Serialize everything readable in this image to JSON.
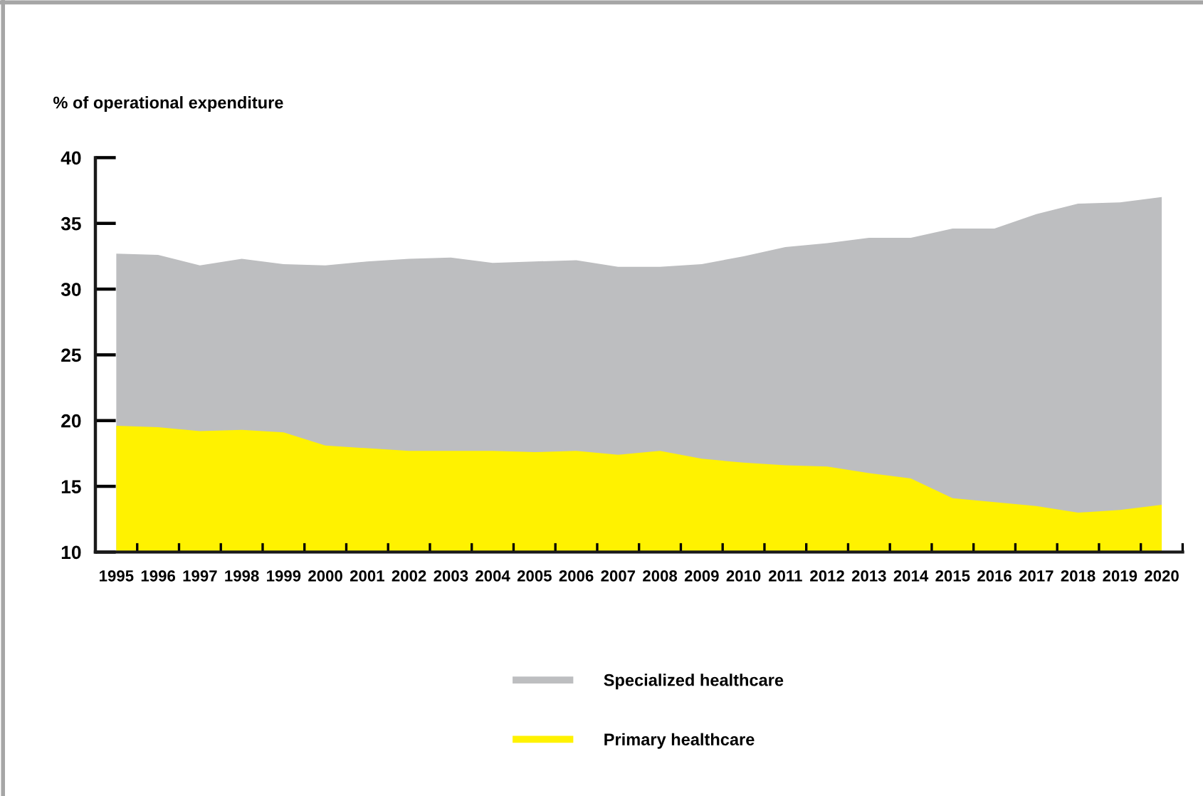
{
  "chart_data": {
    "type": "area",
    "ylabel": "% of operational expenditure",
    "categories": [
      "1995",
      "1996",
      "1997",
      "1998",
      "1999",
      "2000",
      "2001",
      "2002",
      "2003",
      "2004",
      "2005",
      "2006",
      "2007",
      "2008",
      "2009",
      "2010",
      "2011",
      "2012",
      "2013",
      "2014",
      "2015",
      "2016",
      "2017",
      "2018",
      "2019",
      "2020"
    ],
    "series": [
      {
        "name": "Specialized healthcare",
        "color": "#bdbec0",
        "values": [
          32.7,
          32.6,
          31.8,
          32.3,
          31.9,
          31.8,
          32.1,
          32.3,
          32.4,
          32.0,
          32.1,
          32.2,
          31.7,
          31.7,
          31.9,
          32.5,
          33.2,
          33.5,
          33.9,
          33.9,
          34.6,
          34.6,
          35.7,
          36.5,
          36.6,
          37.0
        ]
      },
      {
        "name": "Primary healthcare",
        "color": "#fff200",
        "values": [
          19.6,
          19.5,
          19.2,
          19.3,
          19.1,
          18.1,
          17.9,
          17.7,
          17.7,
          17.7,
          17.6,
          17.7,
          17.4,
          17.7,
          17.1,
          16.8,
          16.6,
          16.5,
          16.0,
          15.6,
          14.1,
          13.8,
          13.5,
          13.0,
          13.2,
          13.6
        ]
      }
    ],
    "ylim": [
      10,
      40
    ],
    "yticks": [
      10,
      15,
      20,
      25,
      30,
      35,
      40
    ],
    "legend": "bottom"
  }
}
